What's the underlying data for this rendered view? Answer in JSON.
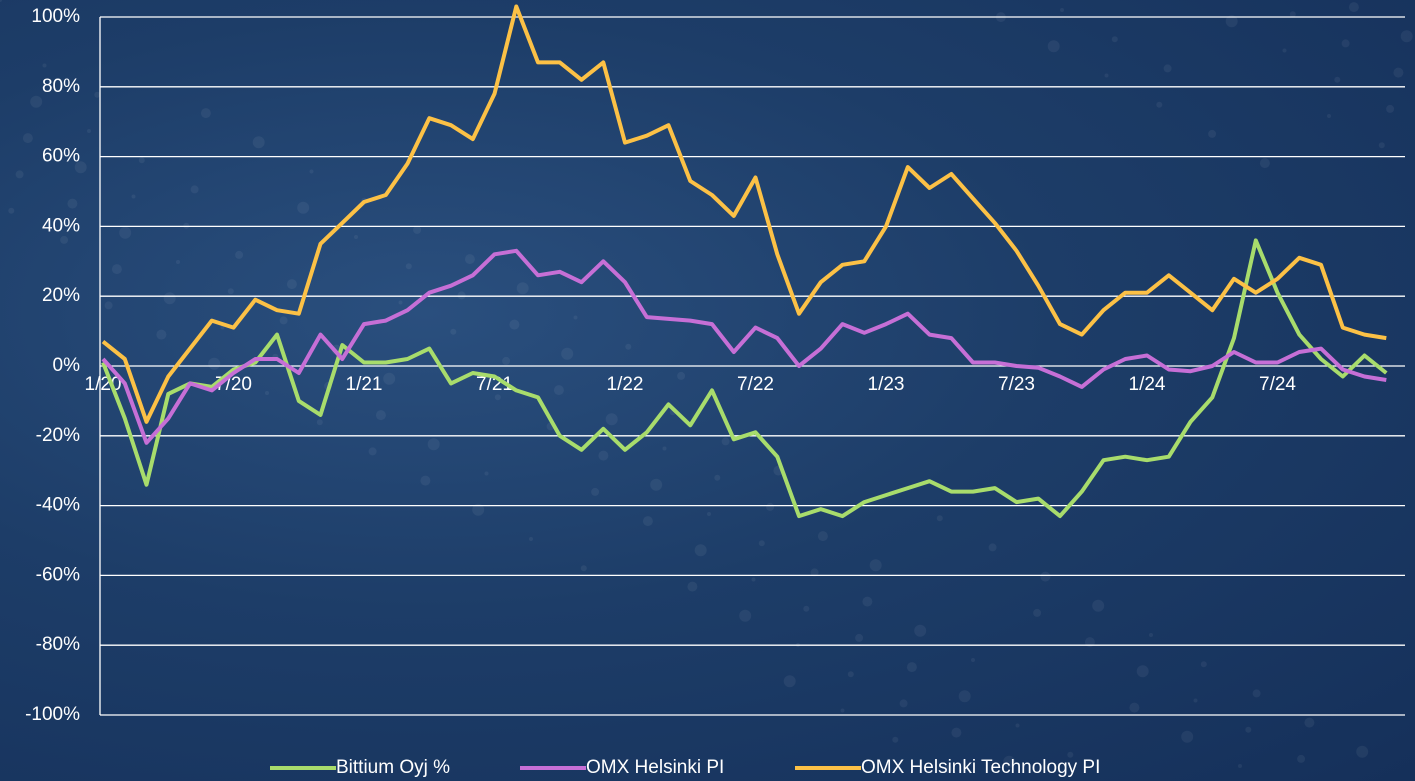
{
  "chart_data": {
    "type": "line",
    "categories": [
      "1/20",
      null,
      null,
      null,
      null,
      null,
      "7/20",
      null,
      null,
      null,
      null,
      null,
      "1/21",
      null,
      null,
      null,
      null,
      null,
      "7/21",
      null,
      null,
      null,
      null,
      null,
      "1/22",
      null,
      null,
      null,
      null,
      null,
      "7/22",
      null,
      null,
      null,
      null,
      null,
      "1/23",
      null,
      null,
      null,
      null,
      null,
      "7/23",
      null,
      null,
      null,
      null,
      null,
      "1/24",
      null,
      null,
      null,
      null,
      null,
      "7/24",
      null,
      null,
      null,
      null,
      null
    ],
    "series": [
      {
        "name": "Bittium Oyj %",
        "color": "#a8dc6c",
        "values": [
          1,
          -15,
          -34,
          -8,
          -5,
          -6,
          -1,
          1,
          9,
          -10,
          -14,
          6,
          1,
          1,
          2,
          5,
          -5,
          -2,
          -3,
          -7,
          -9,
          -20,
          -24,
          -18,
          -24,
          -19,
          -11,
          -17,
          -7,
          -21,
          -19,
          -26,
          -43,
          -41,
          -43,
          -39,
          -37,
          -35,
          -33,
          -36,
          -36,
          -35,
          -39,
          -38,
          -43,
          -36,
          -27,
          -26,
          -27,
          -26,
          -16,
          -9,
          8,
          36,
          21,
          9,
          2,
          -3,
          3,
          -2
        ]
      },
      {
        "name": "OMX Helsinki PI",
        "color": "#c66fd6",
        "values": [
          2,
          -5,
          -22,
          -15,
          -5,
          -7,
          -2,
          2,
          2,
          -2,
          9,
          2,
          12,
          13,
          16,
          21,
          23,
          26,
          32,
          33,
          26,
          27,
          24,
          30,
          24,
          14,
          13.5,
          13,
          12,
          4,
          11,
          8,
          0,
          5,
          12,
          9.5,
          12,
          15,
          9,
          8,
          1,
          1,
          0,
          -0.5,
          -3,
          -6,
          -1,
          2,
          3,
          -1,
          -1.5,
          0,
          4,
          1,
          1,
          4,
          5,
          -1,
          -3,
          -4
        ]
      },
      {
        "name": "OMX Helsinki Technology PI",
        "color": "#fcc146",
        "values": [
          7,
          2,
          -16,
          -3,
          5,
          13,
          11,
          19,
          16,
          15,
          35,
          41,
          47,
          49,
          58,
          71,
          69,
          65,
          78,
          103,
          87,
          87,
          82,
          87,
          64,
          66,
          69,
          53,
          49,
          43,
          54,
          32,
          15,
          24,
          29,
          30,
          40,
          57,
          51,
          55,
          48,
          41,
          33,
          23,
          12,
          9,
          16,
          21,
          21,
          26,
          21,
          16,
          25,
          21,
          25,
          31,
          29,
          11,
          9,
          8
        ]
      }
    ],
    "ylim": [
      -100,
      100
    ],
    "yticks": [
      {
        "value": -100,
        "label": "-100%"
      },
      {
        "value": -80,
        "label": "-80%"
      },
      {
        "value": -60,
        "label": "-60%"
      },
      {
        "value": -40,
        "label": "-40%"
      },
      {
        "value": -20,
        "label": "-20%"
      },
      {
        "value": 0,
        "label": "0%"
      },
      {
        "value": 20,
        "label": "20%"
      },
      {
        "value": 40,
        "label": "40%"
      },
      {
        "value": 60,
        "label": "60%"
      },
      {
        "value": 80,
        "label": "80%"
      },
      {
        "value": 100,
        "label": "100%"
      }
    ],
    "grid": true,
    "legend": "bottom"
  }
}
